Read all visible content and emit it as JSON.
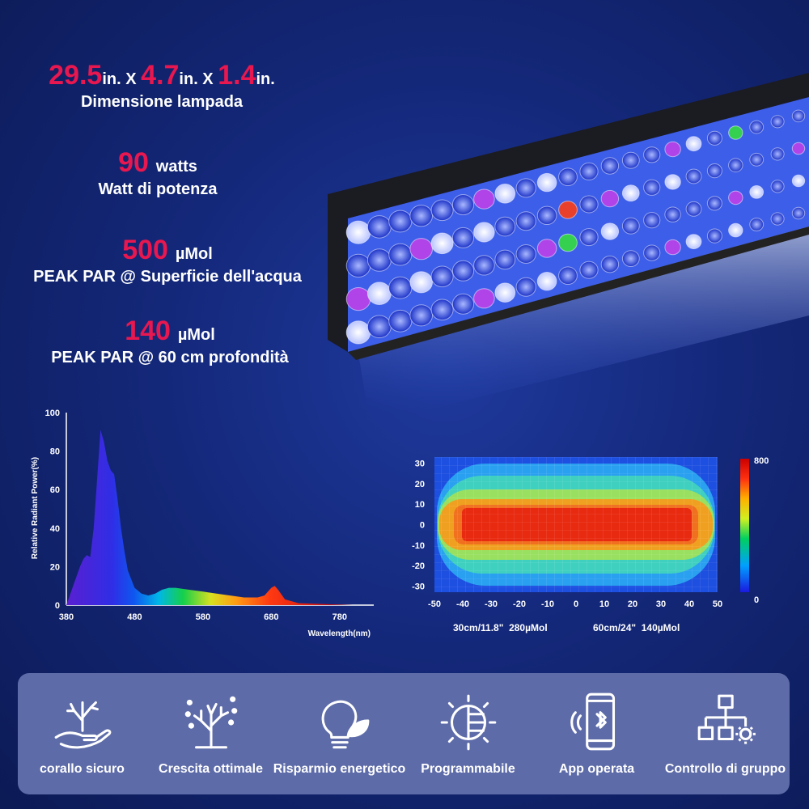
{
  "specs": {
    "dimensions": {
      "v1": "29.5",
      "u1": "in. X ",
      "v2": "4.7",
      "u2": "in. X ",
      "v3": "1.4",
      "u3": "in.",
      "caption": "Dimensione lampada"
    },
    "power": {
      "value": "90",
      "unit": "watts",
      "caption": "Watt di potenza"
    },
    "par_surface": {
      "value": "500",
      "unit": "µMol",
      "caption": "PEAK PAR @ Superficie dell'acqua"
    },
    "par_depth": {
      "value": "140",
      "unit": "µMol",
      "caption": "PEAK PAR @ 60 cm profondità"
    }
  },
  "chart_data": [
    {
      "type": "area",
      "xlabel": "Wavelength(nm)",
      "ylabel": "Relative Radiant Power(%)",
      "xlim": [
        380,
        830
      ],
      "ylim": [
        0,
        100
      ],
      "xticks": [
        380,
        480,
        580,
        680,
        780
      ],
      "yticks": [
        0,
        20,
        40,
        60,
        80,
        100
      ],
      "x": [
        380,
        390,
        400,
        405,
        410,
        415,
        420,
        425,
        430,
        435,
        440,
        445,
        450,
        455,
        460,
        465,
        470,
        480,
        490,
        500,
        510,
        520,
        530,
        540,
        560,
        580,
        600,
        620,
        640,
        660,
        670,
        680,
        685,
        690,
        700,
        720,
        760,
        800,
        830
      ],
      "y": [
        0,
        10,
        20,
        24,
        26,
        25,
        40,
        65,
        91,
        85,
        75,
        70,
        68,
        55,
        40,
        28,
        18,
        9,
        6,
        5,
        6,
        8,
        9,
        9,
        8,
        7,
        6,
        5,
        4,
        4,
        5,
        9,
        10,
        8,
        3,
        1,
        0.5,
        0,
        0
      ]
    },
    {
      "type": "heatmap",
      "xticks": [
        -50,
        -40,
        -30,
        -20,
        -10,
        0,
        10,
        20,
        30,
        40,
        50
      ],
      "yticks": [
        30,
        20,
        10,
        0,
        -10,
        -20,
        -30
      ],
      "xlim": [
        -50,
        50
      ],
      "ylim": [
        -33,
        33
      ],
      "scale_min": "0",
      "scale_max": "800",
      "annotations": [
        "30cm/11.8\"  280µMol",
        "60cm/24\"  140µMol"
      ]
    }
  ],
  "features": [
    {
      "label": "corallo sicuro",
      "icon": "coral-hand-icon"
    },
    {
      "label": "Crescita ottimale",
      "icon": "coral-growth-icon"
    },
    {
      "label": "Risparmio energetico",
      "icon": "bulb-leaf-icon"
    },
    {
      "label": "Programmabile",
      "icon": "sun-dial-icon"
    },
    {
      "label": "App operata",
      "icon": "phone-bluetooth-icon"
    },
    {
      "label": "Controllo di gruppo",
      "icon": "network-gear-icon"
    }
  ],
  "colors": {
    "accent": "#e8174f",
    "panel": "#5d6ba8"
  }
}
